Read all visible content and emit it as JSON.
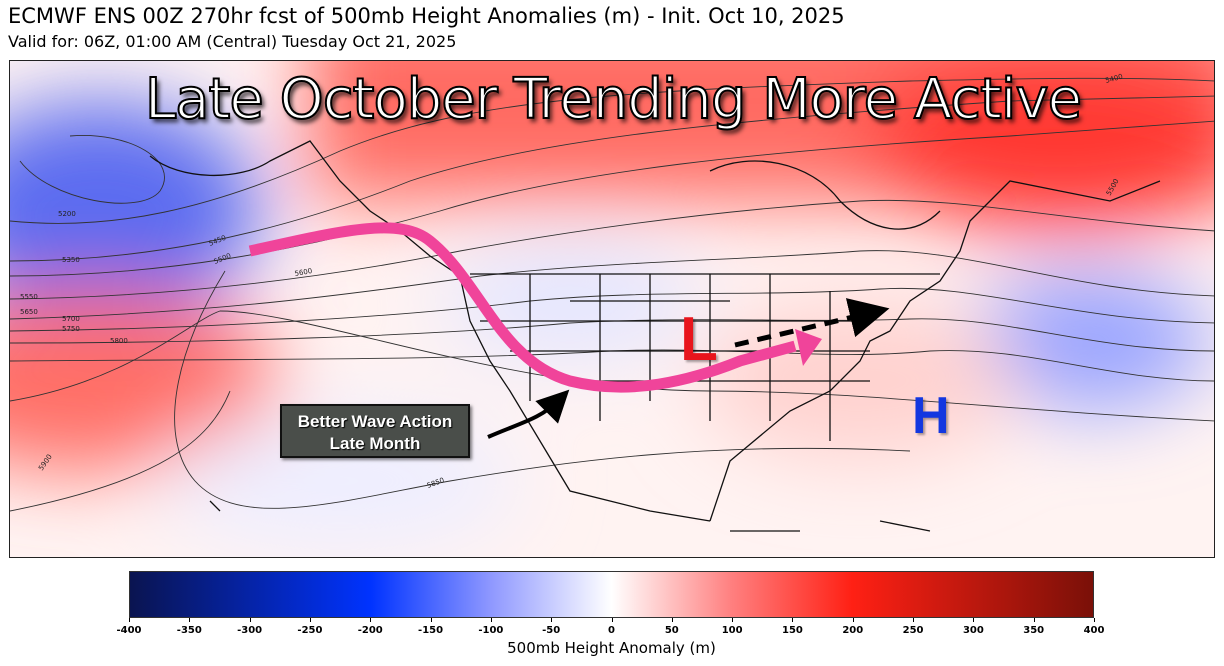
{
  "header": {
    "title": "ECMWF ENS 00Z 270hr fcst of 500mb Height Anomalies (m) - Init. Oct 10, 2025",
    "subtitle": "Valid for: 06Z, 01:00 AM (Central) Tuesday Oct 21, 2025"
  },
  "map": {
    "headline": "Late October Trending More Active",
    "annotation": "Better Wave Action\nLate Month",
    "low_label": "L",
    "high_label": "H",
    "low_color": "#e8141c",
    "high_color": "#1337e0",
    "jet_arrow_color": "#f0449a",
    "contour_labels": [
      "5200",
      "5350",
      "5450",
      "5500",
      "5600",
      "5550",
      "5650",
      "5700",
      "5750",
      "5800",
      "5850",
      "5900",
      "5400",
      "5500"
    ]
  },
  "colorbar": {
    "label": "500mb Height Anomaly (m)",
    "range": [
      -400,
      400
    ],
    "ticks": [
      -400,
      -350,
      -300,
      -250,
      -200,
      -150,
      -100,
      -50,
      0,
      50,
      100,
      150,
      200,
      250,
      300,
      350,
      400
    ],
    "colors": [
      {
        "value": -400,
        "color": "#0a1450"
      },
      {
        "value": -200,
        "color": "#0033ff"
      },
      {
        "value": -100,
        "color": "#8f98ff"
      },
      {
        "value": 0,
        "color": "#ffffff"
      },
      {
        "value": 100,
        "color": "#ff7f7f"
      },
      {
        "value": 200,
        "color": "#ff2014"
      },
      {
        "value": 400,
        "color": "#7a1008"
      }
    ]
  }
}
